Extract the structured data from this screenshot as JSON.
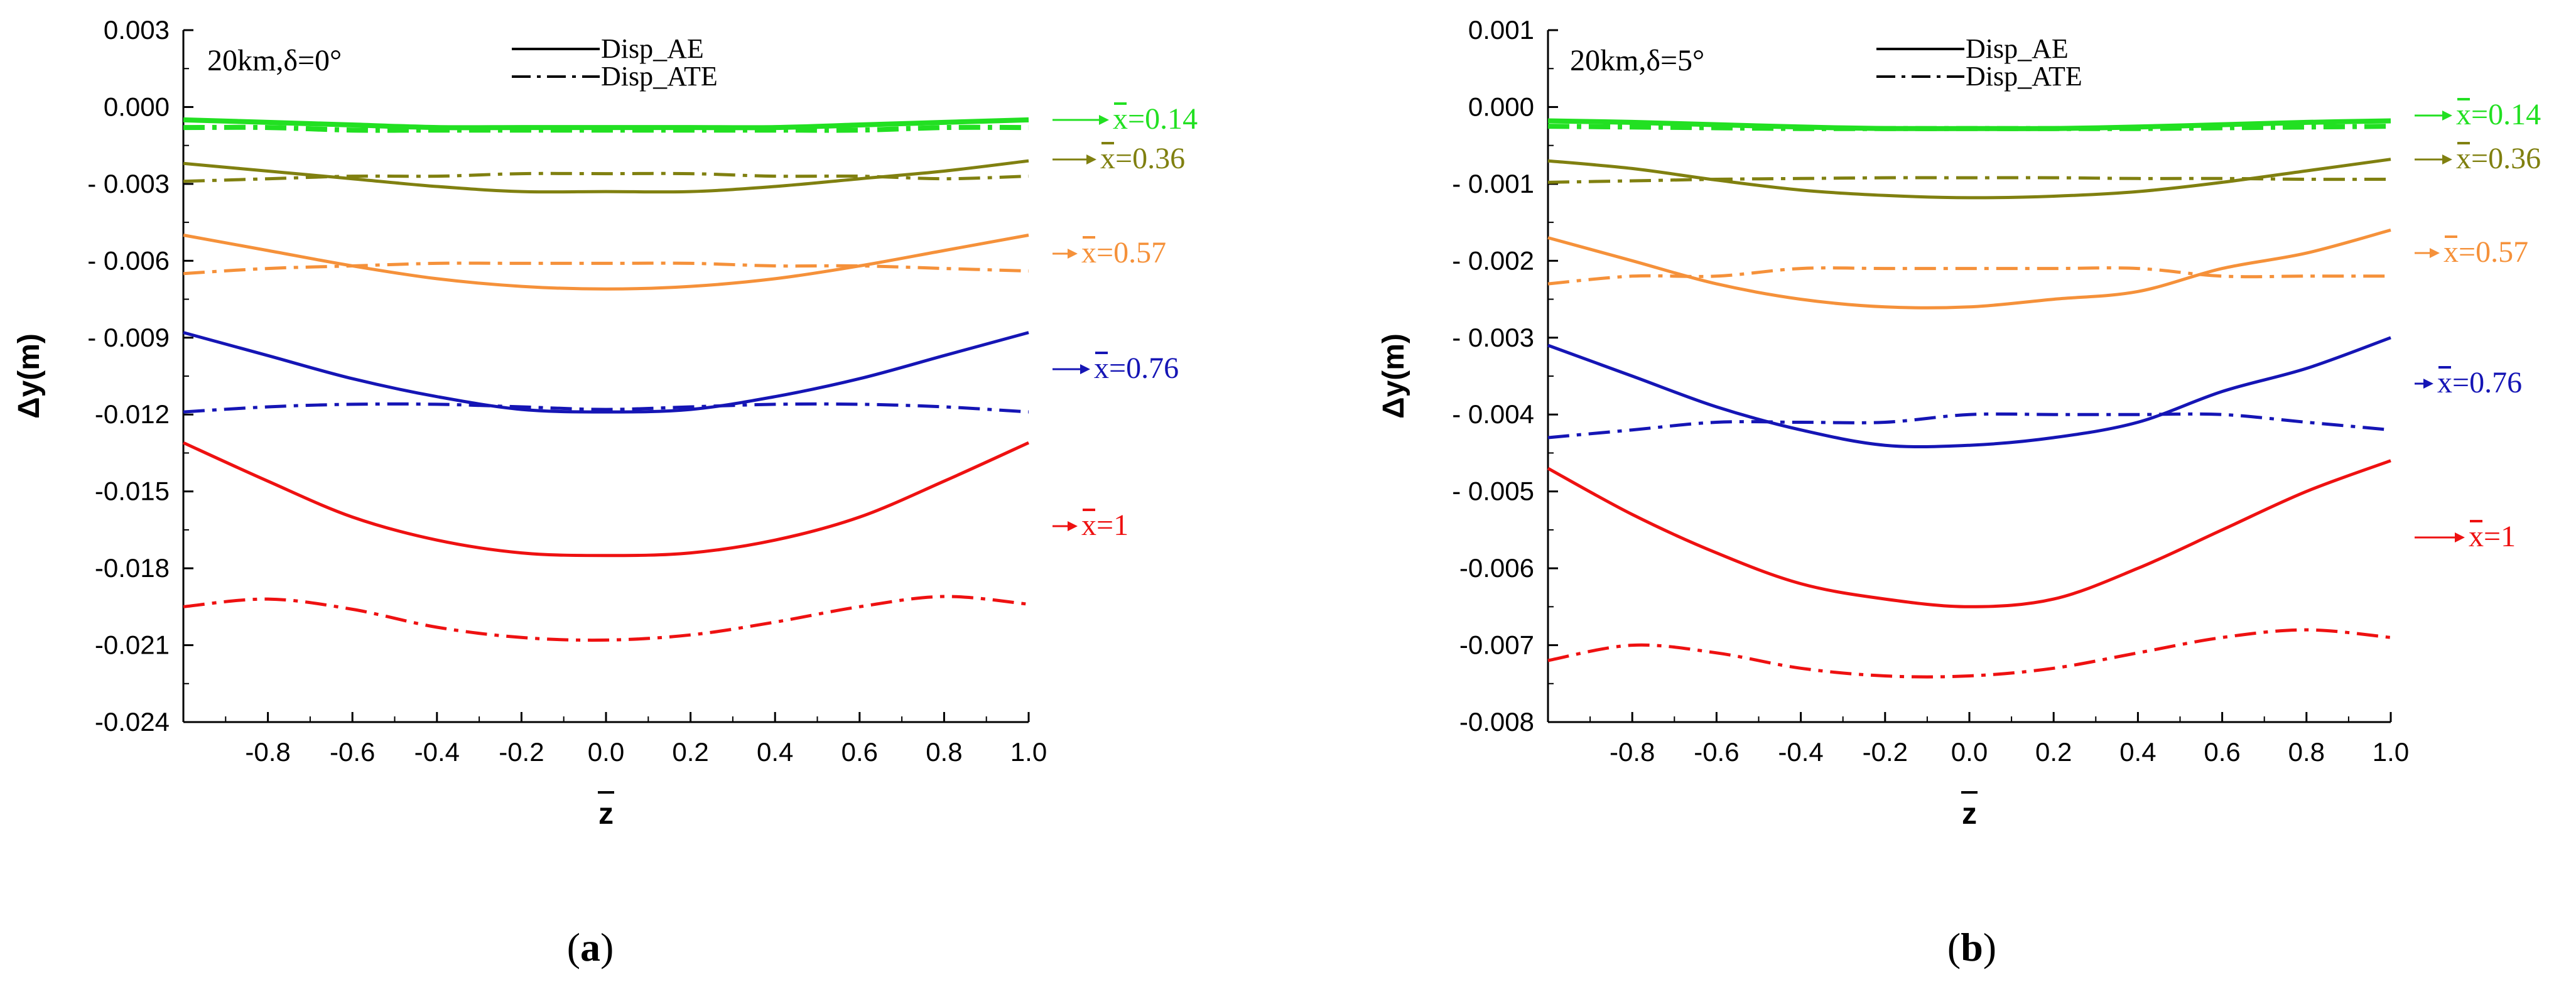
{
  "chart_data": [
    {
      "type": "line",
      "panel_label": "a",
      "annotation": "20km,δ=0°",
      "xlabel": "z",
      "ylabel": "Δy(m)",
      "xlim": [
        -1.0,
        1.0
      ],
      "ylim": [
        -0.024,
        0.003
      ],
      "x_ticks": [
        -0.8,
        -0.6,
        -0.4,
        -0.2,
        0.0,
        0.2,
        0.4,
        0.6,
        0.8,
        1.0
      ],
      "x_tick_labels": [
        "-0.8",
        "-0.6",
        "-0.4",
        "-0.2",
        "0.0",
        "0.2",
        "0.4",
        "0.6",
        "0.8",
        "1.0"
      ],
      "y_ticks": [
        0.003,
        0.0,
        -0.003,
        -0.006,
        -0.009,
        -0.012,
        -0.015,
        -0.018,
        -0.021,
        -0.024
      ],
      "y_tick_labels": [
        "0.003",
        "0.000",
        "- 0.003",
        "- 0.006",
        "- 0.009",
        "-0.012",
        "-0.015",
        "-0.018",
        "-0.021",
        "-0.024"
      ],
      "x": [
        -1.0,
        -0.8,
        -0.6,
        -0.4,
        -0.2,
        0.0,
        0.2,
        0.4,
        0.6,
        0.8,
        1.0
      ],
      "legend": [
        {
          "label": "Disp_AE",
          "style": "solid"
        },
        {
          "label": "Disp_ATE",
          "style": "dashdot"
        }
      ],
      "groups": [
        {
          "label": "x=0.14",
          "color": "#22e022",
          "AE": [
            -0.0005,
            -0.0006,
            -0.0007,
            -0.0008,
            -0.0008,
            -0.0008,
            -0.0008,
            -0.0008,
            -0.0007,
            -0.0006,
            -0.0005
          ],
          "ATE": [
            -0.0008,
            -0.0008,
            -0.0009,
            -0.0009,
            -0.0009,
            -0.0009,
            -0.0009,
            -0.0009,
            -0.0009,
            -0.0008,
            -0.0008
          ]
        },
        {
          "label": "x=0.36",
          "color": "#808010",
          "AE": [
            -0.0022,
            -0.0025,
            -0.0028,
            -0.0031,
            -0.0033,
            -0.0033,
            -0.0033,
            -0.0031,
            -0.0028,
            -0.0025,
            -0.0021
          ],
          "ATE": [
            -0.0029,
            -0.0028,
            -0.0027,
            -0.0027,
            -0.0026,
            -0.0026,
            -0.0026,
            -0.0027,
            -0.0027,
            -0.0028,
            -0.0027
          ]
        },
        {
          "label": "x=0.57",
          "color": "#f5913a",
          "AE": [
            -0.005,
            -0.0056,
            -0.0062,
            -0.0067,
            -0.007,
            -0.0071,
            -0.007,
            -0.0067,
            -0.0062,
            -0.0056,
            -0.005
          ],
          "ATE": [
            -0.0065,
            -0.0063,
            -0.0062,
            -0.0061,
            -0.0061,
            -0.0061,
            -0.0061,
            -0.0062,
            -0.0062,
            -0.0063,
            -0.0064
          ]
        },
        {
          "label": "x=0.76",
          "color": "#1515b5",
          "AE": [
            -0.0088,
            -0.0097,
            -0.0106,
            -0.0113,
            -0.0118,
            -0.0119,
            -0.0118,
            -0.0113,
            -0.0106,
            -0.0097,
            -0.0088
          ],
          "ATE": [
            -0.0119,
            -0.0117,
            -0.0116,
            -0.0116,
            -0.0117,
            -0.0118,
            -0.0117,
            -0.0116,
            -0.0116,
            -0.0117,
            -0.0119
          ]
        },
        {
          "label": "x=1",
          "color": "#ee1111",
          "AE": [
            -0.0131,
            -0.0146,
            -0.016,
            -0.0169,
            -0.0174,
            -0.0175,
            -0.0174,
            -0.0169,
            -0.016,
            -0.0146,
            -0.0131
          ],
          "ATE": [
            -0.0195,
            -0.0192,
            -0.0196,
            -0.0203,
            -0.0207,
            -0.0208,
            -0.0206,
            -0.0201,
            -0.0195,
            -0.0191,
            -0.0194
          ]
        }
      ]
    },
    {
      "type": "line",
      "panel_label": "b",
      "annotation": "20km,δ=5°",
      "xlabel": "z",
      "ylabel": "Δy(m)",
      "xlim": [
        -1.0,
        1.0
      ],
      "ylim": [
        -0.008,
        0.001
      ],
      "x_ticks": [
        -0.8,
        -0.6,
        -0.4,
        -0.2,
        0.0,
        0.2,
        0.4,
        0.6,
        0.8,
        1.0
      ],
      "x_tick_labels": [
        "-0.8",
        "-0.6",
        "-0.4",
        "-0.2",
        "0.0",
        "0.2",
        "0.4",
        "0.6",
        "0.8",
        "1.0"
      ],
      "y_ticks": [
        0.001,
        0.0,
        -0.001,
        -0.002,
        -0.003,
        -0.004,
        -0.005,
        -0.006,
        -0.007,
        -0.008
      ],
      "y_tick_labels": [
        "0.001",
        "0.000",
        "- 0.001",
        "- 0.002",
        "- 0.003",
        "- 0.004",
        "- 0.005",
        "-0.006",
        "-0.007",
        "-0.008"
      ],
      "x": [
        -1.0,
        -0.8,
        -0.6,
        -0.4,
        -0.2,
        0.0,
        0.2,
        0.4,
        0.6,
        0.8,
        1.0
      ],
      "legend": [
        {
          "label": "Disp_AE",
          "style": "solid"
        },
        {
          "label": "Disp_ATE",
          "style": "dashdot"
        }
      ],
      "groups": [
        {
          "label": "x=0.14",
          "color": "#22e022",
          "AE": [
            -0.00018,
            -0.0002,
            -0.00023,
            -0.00026,
            -0.00028,
            -0.00028,
            -0.00028,
            -0.00026,
            -0.00023,
            -0.0002,
            -0.00018
          ],
          "ATE": [
            -0.00025,
            -0.00026,
            -0.00027,
            -0.00028,
            -0.00028,
            -0.00028,
            -0.00028,
            -0.00028,
            -0.00027,
            -0.00026,
            -0.00025
          ]
        },
        {
          "label": "x=0.36",
          "color": "#808010",
          "AE": [
            -0.0007,
            -0.0008,
            -0.00095,
            -0.00108,
            -0.00115,
            -0.00118,
            -0.00116,
            -0.0011,
            -0.00098,
            -0.00083,
            -0.00068
          ],
          "ATE": [
            -0.00098,
            -0.00096,
            -0.00094,
            -0.00093,
            -0.00092,
            -0.00092,
            -0.00092,
            -0.00093,
            -0.00093,
            -0.00094,
            -0.00094
          ]
        },
        {
          "label": "x=0.57",
          "color": "#f5913a",
          "AE": [
            -0.0017,
            -0.002,
            -0.0023,
            -0.0025,
            -0.0026,
            -0.0026,
            -0.0025,
            -0.0024,
            -0.0021,
            -0.0019,
            -0.0016
          ],
          "ATE": [
            -0.0023,
            -0.0022,
            -0.0022,
            -0.0021,
            -0.0021,
            -0.0021,
            -0.0021,
            -0.0021,
            -0.0022,
            -0.0022,
            -0.0022
          ]
        },
        {
          "label": "x=0.76",
          "color": "#1515b5",
          "AE": [
            -0.0031,
            -0.0035,
            -0.0039,
            -0.0042,
            -0.0044,
            -0.0044,
            -0.0043,
            -0.0041,
            -0.0037,
            -0.0034,
            -0.003
          ],
          "ATE": [
            -0.0043,
            -0.0042,
            -0.0041,
            -0.0041,
            -0.0041,
            -0.004,
            -0.004,
            -0.004,
            -0.004,
            -0.0041,
            -0.0042
          ]
        },
        {
          "label": "x=1",
          "color": "#ee1111",
          "AE": [
            -0.0047,
            -0.0053,
            -0.0058,
            -0.0062,
            -0.0064,
            -0.0065,
            -0.0064,
            -0.006,
            -0.0055,
            -0.005,
            -0.0046
          ],
          "ATE": [
            -0.0072,
            -0.007,
            -0.0071,
            -0.0073,
            -0.0074,
            -0.0074,
            -0.0073,
            -0.0071,
            -0.0069,
            -0.0068,
            -0.0069
          ]
        }
      ]
    }
  ]
}
